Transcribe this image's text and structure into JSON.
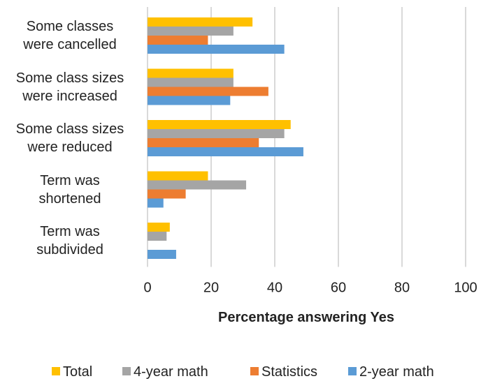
{
  "chart_data": {
    "type": "hbar",
    "x_label": "Percentage answering Yes",
    "categories": [
      "Some classes\nwere cancelled",
      "Some class sizes\nwere increased",
      "Some class sizes\nwere reduced",
      "Term was\nshortened",
      "Term was\nsubdivided"
    ],
    "series": [
      {
        "name": "Total",
        "color": "#ffc000",
        "values": [
          33,
          27,
          45,
          19,
          7
        ]
      },
      {
        "name": "4-year math",
        "color": "#a5a5a5",
        "values": [
          27,
          27,
          43,
          31,
          6
        ]
      },
      {
        "name": "Statistics",
        "color": "#ed7d31",
        "values": [
          19,
          38,
          35,
          12,
          null
        ]
      },
      {
        "name": "2-year math",
        "color": "#5b9bd5",
        "values": [
          43,
          26,
          49,
          5,
          9
        ]
      }
    ],
    "xlim": [
      0,
      100
    ],
    "xticks": [
      0,
      20,
      40,
      60,
      80,
      100
    ],
    "grid": true,
    "legend": "bottom"
  }
}
